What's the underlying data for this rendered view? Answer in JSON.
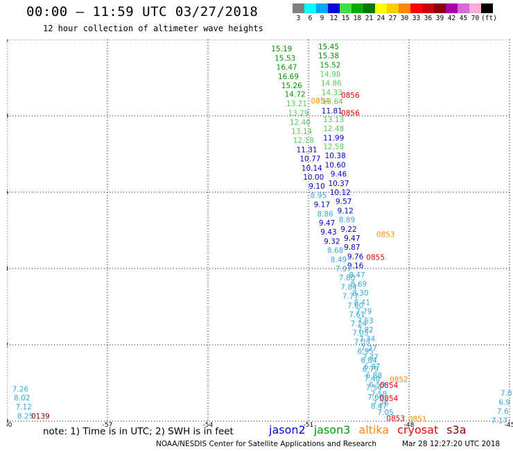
{
  "header": {
    "title": "00:00 – 11:59 UTC 03/27/2018",
    "subtitle": "12 hour collection of altimeter wave heights"
  },
  "scale": {
    "labels": [
      "3",
      "6",
      "9",
      "12",
      "15",
      "18",
      "21",
      "24",
      "27",
      "30",
      "33",
      "36",
      "39",
      "42",
      "45",
      "70",
      "(ft)"
    ],
    "colors": [
      "#7f7f7f",
      "#00ffff",
      "#00aaee",
      "#0000dd",
      "#44dd44",
      "#00aa00",
      "#007700",
      "#ffff00",
      "#ffcc00",
      "#ff8800",
      "#ff0000",
      "#cc0000",
      "#880000",
      "#aa00aa",
      "#dd66dd",
      "#ffaadd",
      "#000000"
    ]
  },
  "notes": {
    "note": "note:  1) Time is in UTC;  2) SWH is in feet",
    "credit": "NOAA/NESDIS Center for Satellite Applications and Research",
    "timestamp": "Mar 28 12:27:20 UTC 2018"
  },
  "satellites": [
    {
      "name": "jason2",
      "color": "#0000dd"
    },
    {
      "name": "jason3",
      "color": "#009900"
    },
    {
      "name": "altika",
      "color": "#ff8800"
    },
    {
      "name": "cryosat",
      "color": "#ee0000"
    },
    {
      "name": "s3a",
      "color": "#880000"
    }
  ],
  "chart_data": {
    "type": "scatter",
    "title": "00:00 – 11:59 UTC 03/27/2018",
    "subtitle": "12 hour collection of altimeter wave heights",
    "xlim": [
      -60,
      -45
    ],
    "ylim": [
      30,
      40
    ],
    "x_ticks": [
      -60,
      -57,
      -54,
      -51,
      -48,
      -45
    ],
    "y_ticks": [
      30,
      32,
      34,
      36,
      38,
      40
    ],
    "grid": true,
    "series": [
      {
        "name": "jason3",
        "color": "#009900",
        "points": [
          [
            -51.8,
            39.76,
            "15.19"
          ],
          [
            -51.7,
            39.52,
            "15.53"
          ],
          [
            -51.65,
            39.28,
            "16.47"
          ],
          [
            -51.6,
            39.04,
            "16.69"
          ],
          [
            -51.5,
            38.8,
            "15.26"
          ],
          [
            -51.4,
            38.57,
            "14.72"
          ],
          [
            -50.4,
            39.82,
            "15.45"
          ],
          [
            -50.4,
            39.58,
            "15.38"
          ],
          [
            -50.35,
            39.34,
            "15.52"
          ]
        ]
      },
      {
        "name": "jason3-light",
        "color": "#55cc55",
        "points": [
          [
            -51.35,
            38.33,
            "13.21"
          ],
          [
            -51.3,
            38.08,
            "13.29"
          ],
          [
            -51.25,
            37.84,
            "12.40"
          ],
          [
            -51.2,
            37.6,
            "13.14"
          ],
          [
            -51.15,
            37.36,
            "12.18"
          ],
          [
            -50.35,
            39.1,
            "14.98"
          ],
          [
            -50.32,
            38.86,
            "14.86"
          ],
          [
            -50.3,
            38.62,
            "14.33"
          ],
          [
            -50.28,
            38.38,
            "13.64"
          ],
          [
            -50.25,
            37.91,
            "13.13"
          ],
          [
            -50.25,
            37.67,
            "12.48"
          ],
          [
            -50.25,
            37.2,
            "12.58"
          ]
        ]
      },
      {
        "name": "jason2",
        "color": "#0000cc",
        "points": [
          [
            -51.05,
            37.12,
            "11.31"
          ],
          [
            -50.95,
            36.88,
            "10.77"
          ],
          [
            -50.9,
            36.64,
            "10.14"
          ],
          [
            -50.85,
            36.4,
            "10.00"
          ],
          [
            -50.75,
            36.16,
            "9.10"
          ],
          [
            -50.6,
            35.68,
            "9.17"
          ],
          [
            -50.45,
            35.2,
            "9.47"
          ],
          [
            -50.4,
            34.96,
            "9.43"
          ],
          [
            -50.3,
            34.72,
            "9.32"
          ],
          [
            -50.3,
            38.14,
            "11.81"
          ],
          [
            -50.25,
            37.43,
            "11.99"
          ],
          [
            -50.2,
            36.96,
            "10.38"
          ],
          [
            -50.2,
            36.72,
            "10.60"
          ],
          [
            -50.1,
            36.48,
            "9.46"
          ],
          [
            -50.1,
            36.24,
            "10.37"
          ],
          [
            -50.05,
            36.0,
            "10.12"
          ],
          [
            -49.95,
            35.76,
            "9.57"
          ],
          [
            -49.9,
            35.52,
            "9.12"
          ],
          [
            -49.8,
            35.04,
            "9.22"
          ],
          [
            -49.7,
            34.8,
            "9.47"
          ],
          [
            -49.7,
            34.56,
            "9.87"
          ],
          [
            -49.6,
            34.32,
            "9.76"
          ],
          [
            -49.6,
            34.08,
            "9.16"
          ]
        ]
      },
      {
        "name": "jason2-light",
        "color": "#33aadd",
        "points": [
          [
            -50.7,
            35.92,
            "8.95"
          ],
          [
            -50.5,
            35.44,
            "8.86"
          ],
          [
            -50.2,
            34.48,
            "8.68"
          ],
          [
            -50.1,
            34.24,
            "8.49"
          ],
          [
            -49.95,
            34.0,
            "7.97"
          ],
          [
            -49.85,
            33.76,
            "7.80"
          ],
          [
            -49.8,
            33.52,
            "7.84"
          ],
          [
            -49.75,
            33.28,
            "7.77"
          ],
          [
            -49.6,
            33.04,
            "7.60"
          ],
          [
            -49.55,
            32.8,
            "7.61"
          ],
          [
            -49.5,
            32.56,
            "7.24"
          ],
          [
            -49.45,
            32.32,
            "7.05"
          ],
          [
            -49.4,
            32.08,
            "7.03"
          ],
          [
            -49.3,
            31.84,
            "6.95"
          ],
          [
            -49.2,
            31.6,
            "6.84"
          ],
          [
            -49.15,
            31.36,
            "6.79"
          ],
          [
            -49.1,
            31.12,
            "7.40"
          ],
          [
            -49.05,
            30.88,
            "7.54"
          ],
          [
            -49.0,
            30.64,
            "7.60"
          ],
          [
            -48.9,
            30.4,
            "8.47"
          ],
          [
            -49.85,
            35.28,
            "8.89"
          ],
          [
            -49.55,
            33.84,
            "8.47"
          ],
          [
            -49.5,
            33.6,
            "8.69"
          ],
          [
            -49.45,
            33.36,
            "8.30"
          ],
          [
            -49.4,
            33.12,
            "8.41"
          ],
          [
            -49.35,
            32.88,
            "7.79"
          ],
          [
            -49.3,
            32.64,
            "7.53"
          ],
          [
            -49.3,
            32.4,
            "7.82"
          ],
          [
            -49.25,
            32.16,
            "7.34"
          ],
          [
            -49.2,
            31.92,
            "7.27"
          ],
          [
            -49.15,
            31.68,
            "7.47"
          ],
          [
            -49.1,
            31.44,
            "6.97"
          ],
          [
            -49.05,
            31.2,
            "6.88"
          ],
          [
            -48.95,
            30.96,
            "6.59"
          ],
          [
            -48.9,
            30.72,
            "7.58"
          ],
          [
            -48.85,
            30.48,
            "7.26"
          ],
          [
            -48.7,
            30.24,
            "7.05"
          ],
          [
            -59.6,
            30.85,
            "7.26"
          ],
          [
            -59.55,
            30.62,
            "8.02"
          ],
          [
            -59.5,
            30.38,
            "7.12"
          ],
          [
            -59.45,
            30.14,
            "8.25"
          ],
          [
            -45.1,
            30.74,
            "7.0"
          ],
          [
            -45.15,
            30.5,
            "6.9"
          ],
          [
            -45.2,
            30.26,
            "7.6"
          ],
          [
            -45.3,
            30.02,
            "7.17"
          ]
        ]
      },
      {
        "name": "altika",
        "color": "#ff8800",
        "points": [
          [
            -50.65,
            38.4,
            "0854"
          ],
          [
            -48.7,
            34.9,
            "0853"
          ],
          [
            -48.3,
            31.1,
            "0852"
          ],
          [
            -47.75,
            30.06,
            "0851"
          ]
        ]
      },
      {
        "name": "cryosat",
        "color": "#ee0000",
        "points": [
          [
            -49.75,
            38.55,
            "0856"
          ],
          [
            -49.75,
            38.08,
            "0856"
          ],
          [
            -49.0,
            34.3,
            "0855"
          ],
          [
            -48.6,
            30.95,
            "0854"
          ],
          [
            -48.6,
            30.6,
            "0854"
          ],
          [
            -48.4,
            30.08,
            "0853"
          ]
        ]
      },
      {
        "name": "s3a",
        "color": "#880000",
        "points": [
          [
            -59.0,
            30.14,
            "0139"
          ]
        ]
      }
    ]
  }
}
